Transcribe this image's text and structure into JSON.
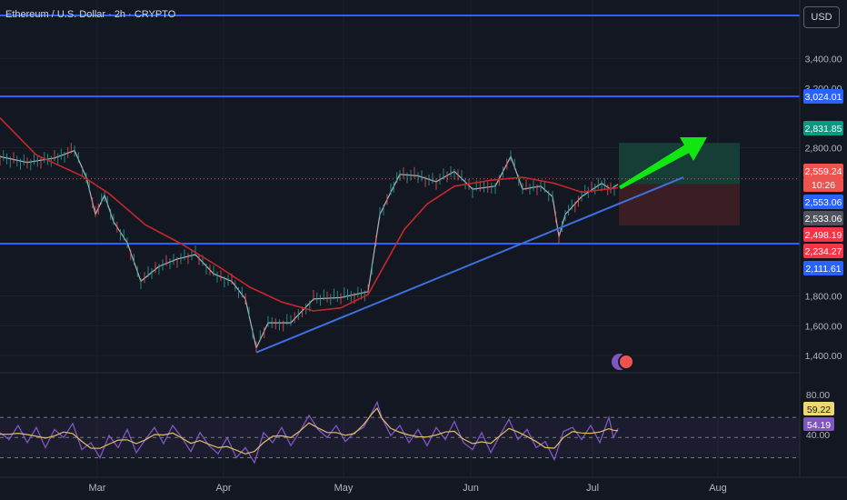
{
  "header": {
    "title": "Ethereum / U.S. Dollar · 2h · CRYPTO",
    "currency": "USD"
  },
  "colors": {
    "background": "#131722",
    "grid": "#1e222d",
    "text": "#b2b5be",
    "level_line": "#2962ff",
    "ma": "#c62828",
    "trendline": "#3d6fe0",
    "arrow": "#12e612",
    "profit_zone": "#173e36",
    "loss_zone": "#3a1e24",
    "rsi": "#7e57c2",
    "rsi_signal": "#e0c060",
    "candle_up": "#26a69a",
    "candle_down": "#ef5350"
  },
  "chart_data": {
    "type": "candlestick",
    "x_ticks": [
      "Mar",
      "Apr",
      "May",
      "Jun",
      "Jul",
      "Aug"
    ],
    "y_ticks": [
      "3,400.00",
      "3,200.00",
      "2,800.00",
      "2,600.00",
      "1,800.00",
      "1,600.00",
      "1,400.00"
    ],
    "price_line": [
      [
        0,
        2740
      ],
      [
        30,
        2700
      ],
      [
        60,
        2730
      ],
      [
        82,
        2780
      ],
      [
        95,
        2600
      ],
      [
        105,
        2350
      ],
      [
        115,
        2480
      ],
      [
        125,
        2300
      ],
      [
        140,
        2160
      ],
      [
        155,
        1900
      ],
      [
        175,
        2000
      ],
      [
        195,
        2050
      ],
      [
        215,
        2080
      ],
      [
        235,
        1950
      ],
      [
        255,
        1900
      ],
      [
        270,
        1780
      ],
      [
        282,
        1450
      ],
      [
        295,
        1620
      ],
      [
        320,
        1620
      ],
      [
        345,
        1780
      ],
      [
        375,
        1790
      ],
      [
        405,
        1830
      ],
      [
        418,
        2350
      ],
      [
        430,
        2500
      ],
      [
        440,
        2620
      ],
      [
        460,
        2610
      ],
      [
        480,
        2570
      ],
      [
        500,
        2640
      ],
      [
        520,
        2520
      ],
      [
        545,
        2540
      ],
      [
        562,
        2740
      ],
      [
        575,
        2520
      ],
      [
        595,
        2540
      ],
      [
        608,
        2470
      ],
      [
        615,
        2200
      ],
      [
        622,
        2350
      ],
      [
        640,
        2470
      ],
      [
        662,
        2560
      ],
      [
        672,
        2520
      ],
      [
        680,
        2553
      ]
    ],
    "moving_average": [
      [
        0,
        3000
      ],
      [
        40,
        2750
      ],
      [
        90,
        2610
      ],
      [
        120,
        2490
      ],
      [
        160,
        2280
      ],
      [
        200,
        2150
      ],
      [
        240,
        2000
      ],
      [
        275,
        1860
      ],
      [
        310,
        1760
      ],
      [
        345,
        1700
      ],
      [
        375,
        1720
      ],
      [
        405,
        1810
      ],
      [
        425,
        2030
      ],
      [
        445,
        2250
      ],
      [
        470,
        2420
      ],
      [
        500,
        2540
      ],
      [
        540,
        2580
      ],
      [
        575,
        2600
      ],
      [
        610,
        2560
      ],
      [
        640,
        2500
      ],
      [
        680,
        2530
      ]
    ],
    "horizontal_levels": [
      3524,
      3024.01,
      2111.61
    ],
    "trendline": {
      "from": [
        282,
        1420
      ],
      "to": [
        752,
        2600
      ]
    },
    "position_tool": {
      "x_start": 681,
      "x_end": 814,
      "entry": 2553.06,
      "target": 2831.85,
      "stop": 2234.27
    },
    "arrow": {
      "from": [
        682,
        2530
      ],
      "to": [
        778,
        2870
      ]
    },
    "price_labels": [
      {
        "value": "3,024.01",
        "color": "#2962ff",
        "text_color": "#ffffff"
      },
      {
        "value": "2,831.85",
        "color": "#089981",
        "text_color": "#ffffff"
      },
      {
        "value": "2,559.24",
        "color": "#ef5350",
        "text_color": "#ffffff"
      },
      {
        "value": "10:26",
        "color": "#ef5350",
        "text_color": "#ffffff"
      },
      {
        "value": "2,553.06",
        "color": "#2962ff",
        "text_color": "#ffffff"
      },
      {
        "value": "2,533.06",
        "color": "#50535e",
        "text_color": "#ffffff"
      },
      {
        "value": "2,498.19",
        "color": "#f23645",
        "text_color": "#ffffff"
      },
      {
        "value": "2,234.27",
        "color": "#f23645",
        "text_color": "#ffffff"
      },
      {
        "value": "2,111.61",
        "color": "#2962ff",
        "text_color": "#ffffff"
      }
    ],
    "rsi": {
      "axis_ticks": [
        "80.00",
        "40.00"
      ],
      "labels": [
        {
          "value": "59.22",
          "color": "#f0d870",
          "text_color": "#131722"
        },
        {
          "value": "54.19",
          "color": "#7e57c2",
          "text_color": "#ffffff"
        }
      ],
      "upper": 70,
      "lower": 30,
      "middle": 50,
      "series": [
        [
          0,
          55
        ],
        [
          10,
          48
        ],
        [
          20,
          62
        ],
        [
          30,
          45
        ],
        [
          40,
          60
        ],
        [
          50,
          40
        ],
        [
          60,
          58
        ],
        [
          70,
          50
        ],
        [
          80,
          64
        ],
        [
          90,
          38
        ],
        [
          100,
          45
        ],
        [
          110,
          30
        ],
        [
          120,
          52
        ],
        [
          130,
          40
        ],
        [
          140,
          58
        ],
        [
          150,
          35
        ],
        [
          160,
          48
        ],
        [
          170,
          60
        ],
        [
          180,
          44
        ],
        [
          190,
          62
        ],
        [
          200,
          50
        ],
        [
          210,
          36
        ],
        [
          220,
          55
        ],
        [
          230,
          42
        ],
        [
          240,
          34
        ],
        [
          250,
          50
        ],
        [
          260,
          30
        ],
        [
          270,
          40
        ],
        [
          280,
          25
        ],
        [
          290,
          55
        ],
        [
          300,
          45
        ],
        [
          310,
          60
        ],
        [
          320,
          42
        ],
        [
          330,
          56
        ],
        [
          340,
          72
        ],
        [
          350,
          58
        ],
        [
          360,
          50
        ],
        [
          370,
          62
        ],
        [
          380,
          46
        ],
        [
          390,
          55
        ],
        [
          400,
          60
        ],
        [
          410,
          76
        ],
        [
          415,
          85
        ],
        [
          420,
          70
        ],
        [
          430,
          52
        ],
        [
          440,
          62
        ],
        [
          450,
          45
        ],
        [
          460,
          58
        ],
        [
          470,
          42
        ],
        [
          480,
          60
        ],
        [
          490,
          48
        ],
        [
          500,
          66
        ],
        [
          510,
          45
        ],
        [
          520,
          38
        ],
        [
          530,
          55
        ],
        [
          540,
          35
        ],
        [
          550,
          52
        ],
        [
          560,
          68
        ],
        [
          570,
          48
        ],
        [
          580,
          58
        ],
        [
          590,
          40
        ],
        [
          600,
          46
        ],
        [
          610,
          28
        ],
        [
          620,
          56
        ],
        [
          630,
          60
        ],
        [
          640,
          48
        ],
        [
          650,
          62
        ],
        [
          660,
          45
        ],
        [
          670,
          70
        ],
        [
          675,
          50
        ],
        [
          680,
          59
        ]
      ]
    }
  }
}
